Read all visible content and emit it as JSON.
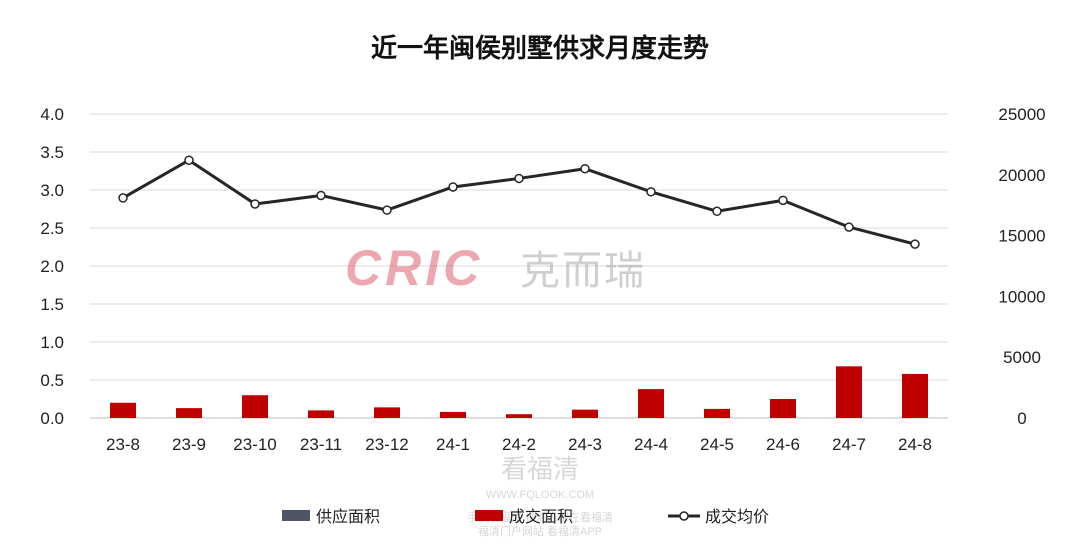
{
  "chart_data": {
    "type": "bar",
    "title": "近一年闽侯别墅供求月度走势",
    "categories": [
      "23-8",
      "23-9",
      "23-10",
      "23-11",
      "23-12",
      "24-1",
      "24-2",
      "24-3",
      "24-4",
      "24-5",
      "24-6",
      "24-7",
      "24-8"
    ],
    "series": [
      {
        "name": "供应面积",
        "type": "bar",
        "axis": "left",
        "color": "#4f5466",
        "values": [
          0,
          0,
          0,
          0,
          0,
          0,
          0,
          0,
          0,
          0,
          0,
          0,
          0
        ]
      },
      {
        "name": "成交面积",
        "type": "bar",
        "axis": "left",
        "color": "#c00000",
        "values": [
          0.2,
          0.13,
          0.3,
          0.1,
          0.14,
          0.08,
          0.05,
          0.11,
          0.38,
          0.12,
          0.25,
          0.68,
          0.58
        ]
      },
      {
        "name": "成交均价",
        "type": "line",
        "axis": "right",
        "color": "#262626",
        "values": [
          18100,
          21200,
          17600,
          18300,
          17100,
          19000,
          19700,
          20500,
          18600,
          17000,
          17900,
          15700,
          14300
        ]
      }
    ],
    "ylim_left": [
      0,
      4.0
    ],
    "yticks_left": [
      "0.0",
      "0.5",
      "1.0",
      "1.5",
      "2.0",
      "2.5",
      "3.0",
      "3.5",
      "4.0"
    ],
    "ylim_right": [
      0,
      25000
    ],
    "yticks_right": [
      "0",
      "5000",
      "10000",
      "15000",
      "20000",
      "25000"
    ],
    "grid": true,
    "legend_position": "bottom"
  },
  "watermark": {
    "cric_logo": "CRIC",
    "cric_cn": "克而瑞",
    "site_cn": "看福清",
    "site_url": "WWW.FQLOOK.COM",
    "line3": "手机看福清 福清人都在看福清",
    "line4": "福清门户网站 看福清APP"
  }
}
